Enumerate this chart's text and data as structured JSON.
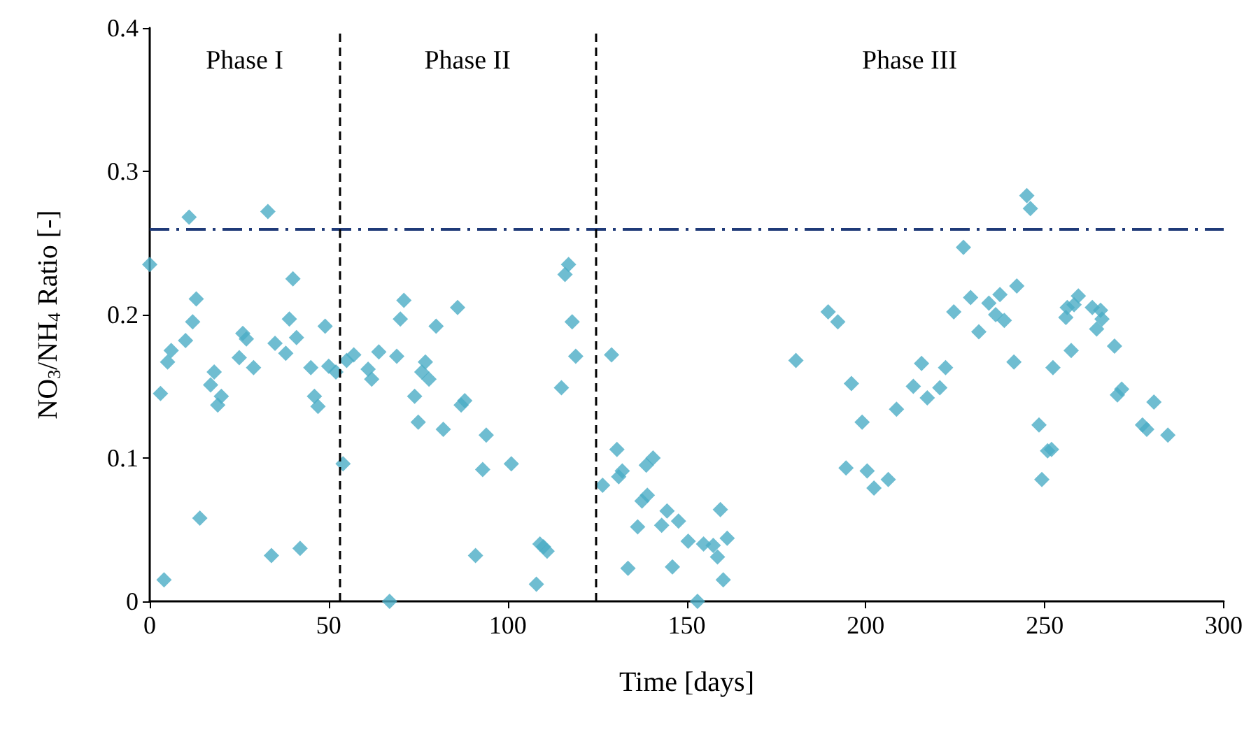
{
  "chart_data": {
    "type": "scatter",
    "xlabel": "Time [days]",
    "ylabel": "NO$_{3}$/NH$_{4}$ Ratio [-]",
    "marker": "diamond",
    "grid": false,
    "xlim": [
      0,
      300
    ],
    "xticks": [
      0,
      50,
      100,
      150,
      200,
      250,
      300
    ],
    "ylim": [
      0,
      0.4
    ],
    "yticks": [
      0,
      0.1,
      0.2,
      0.3,
      0.4
    ],
    "ref_lines": [
      {
        "axis": "y",
        "value": 0.26,
        "color": "#1f3a78",
        "line_style": "dashdot"
      },
      {
        "axis": "x",
        "value": 53,
        "color": "#000000",
        "line_style": "dashed"
      },
      {
        "axis": "x",
        "value": 124.5,
        "color": "#000000",
        "line_style": "dashed"
      }
    ],
    "annotations": [
      "Phase I",
      "Phase II",
      "Phase III"
    ],
    "series": [
      {
        "color": "#4bacc6",
        "x": [
          0,
          3,
          4,
          5,
          6,
          10,
          11,
          12,
          13,
          14,
          17,
          18,
          19,
          20,
          25,
          26,
          27,
          29,
          33,
          34,
          35,
          38,
          39,
          40,
          41,
          42,
          45,
          46,
          47,
          49,
          50,
          52,
          54,
          55,
          57,
          61,
          62,
          64,
          67,
          69,
          70,
          71,
          74,
          75,
          76,
          77,
          78,
          80,
          82,
          86,
          87,
          88,
          91,
          93,
          94,
          101,
          108,
          109,
          110,
          111,
          115,
          116,
          117,
          118,
          119,
          126.5,
          129,
          130.5,
          131,
          132,
          133.6,
          136.3,
          137.5,
          138.7,
          139,
          140.6,
          143,
          144.5,
          146,
          147.7,
          150.4,
          153,
          154.7,
          157.4,
          158.6,
          159.4,
          160.2,
          161.3,
          180.5,
          189.5,
          192.2,
          194.5,
          196,
          199,
          200.4,
          202.3,
          206.3,
          208.6,
          213.3,
          215.6,
          217.2,
          220.7,
          222.3,
          224.6,
          227.3,
          229.3,
          231.6,
          234.4,
          236.3,
          237.5,
          238.7,
          241.4,
          242.2,
          245,
          246,
          248.4,
          249.2,
          250.8,
          251.9,
          252.3,
          255.9,
          256.3,
          257.4,
          258.2,
          259.4,
          263.3,
          264.5,
          265.6,
          266,
          269.5,
          270.3,
          271.5,
          277.3,
          278.5,
          280.5,
          284.4
        ],
        "values": [
          0.235,
          0.145,
          0.015,
          0.167,
          0.175,
          0.182,
          0.268,
          0.195,
          0.211,
          0.058,
          0.151,
          0.16,
          0.137,
          0.143,
          0.17,
          0.187,
          0.183,
          0.163,
          0.272,
          0.032,
          0.18,
          0.173,
          0.197,
          0.225,
          0.184,
          0.037,
          0.163,
          0.143,
          0.136,
          0.192,
          0.164,
          0.16,
          0.096,
          0.168,
          0.172,
          0.162,
          0.155,
          0.174,
          0.0,
          0.171,
          0.197,
          0.21,
          0.143,
          0.125,
          0.16,
          0.167,
          0.155,
          0.192,
          0.12,
          0.205,
          0.137,
          0.14,
          0.032,
          0.092,
          0.116,
          0.096,
          0.012,
          0.04,
          0.038,
          0.035,
          0.149,
          0.228,
          0.235,
          0.195,
          0.171,
          0.081,
          0.172,
          0.106,
          0.087,
          0.091,
          0.023,
          0.052,
          0.07,
          0.095,
          0.074,
          0.1,
          0.053,
          0.063,
          0.024,
          0.056,
          0.042,
          0.0,
          0.04,
          0.039,
          0.031,
          0.064,
          0.015,
          0.044,
          0.168,
          0.202,
          0.195,
          0.093,
          0.152,
          0.125,
          0.091,
          0.079,
          0.085,
          0.134,
          0.15,
          0.166,
          0.142,
          0.149,
          0.163,
          0.202,
          0.247,
          0.212,
          0.188,
          0.208,
          0.2,
          0.214,
          0.196,
          0.167,
          0.22,
          0.283,
          0.274,
          0.123,
          0.085,
          0.105,
          0.106,
          0.163,
          0.198,
          0.205,
          0.175,
          0.207,
          0.213,
          0.205,
          0.19,
          0.203,
          0.197,
          0.178,
          0.144,
          0.148,
          0.123,
          0.12,
          0.139,
          0.116
        ]
      }
    ]
  }
}
